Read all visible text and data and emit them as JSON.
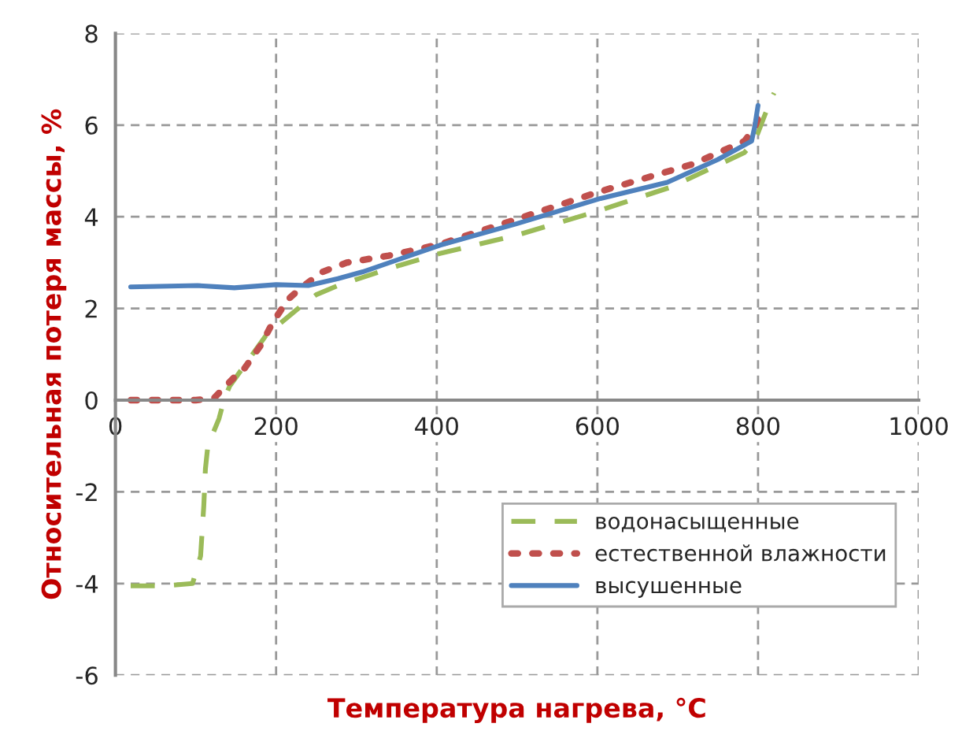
{
  "chart_data": {
    "type": "line",
    "xlabel": "Температура нагрева, °C",
    "ylabel": "Относительная потеря массы, %",
    "xlim": [
      0,
      1000
    ],
    "xticks": [
      0,
      200,
      400,
      600,
      800,
      1000
    ],
    "ylim": [
      -6,
      8
    ],
    "yticks": [
      -6,
      -4,
      -2,
      0,
      2,
      4,
      6,
      8
    ],
    "grid": true,
    "legend": "bottom right",
    "marker": "none",
    "series": [
      {
        "name": "водонасыщенные",
        "color": "#9bbb59",
        "line_style": "dashed",
        "x": [
          19,
          60,
          96,
          106,
          110,
          112,
          115,
          129,
          135,
          142,
          187,
          200,
          231,
          250,
          277,
          346,
          404,
          500,
          596,
          692,
          783,
          796,
          808,
          817,
          820
        ],
        "values": [
          -4.05,
          -4.05,
          -4.0,
          -3.4,
          -2.3,
          -1.5,
          -1.0,
          -0.4,
          0,
          0.3,
          1.4,
          1.6,
          2.05,
          2.3,
          2.5,
          2.9,
          3.2,
          3.6,
          4.1,
          4.65,
          5.4,
          5.65,
          6.2,
          6.6,
          6.7
        ]
      },
      {
        "name": "естественной влажности",
        "color": "#c0504d",
        "line_style": "dotted",
        "x": [
          19,
          60,
          100,
          123,
          135,
          148,
          161,
          181,
          196,
          215,
          231,
          258,
          288,
          340,
          404,
          500,
          603,
          719,
          783,
          796,
          802
        ],
        "values": [
          0,
          0,
          0,
          0.05,
          0.27,
          0.5,
          0.7,
          1.2,
          1.7,
          2.2,
          2.45,
          2.8,
          3.0,
          3.15,
          3.4,
          3.95,
          4.55,
          5.15,
          5.65,
          5.95,
          6.25
        ]
      },
      {
        "name": "высушенные",
        "color": "#4f81bd",
        "line_style": "solid",
        "x": [
          19,
          102,
          148,
          200,
          240,
          277,
          308,
          404,
          500,
          604,
          687,
          750,
          792,
          796,
          800
        ],
        "values": [
          2.47,
          2.5,
          2.45,
          2.52,
          2.5,
          2.65,
          2.8,
          3.38,
          3.85,
          4.4,
          4.75,
          5.25,
          5.65,
          5.98,
          6.43
        ]
      }
    ]
  }
}
